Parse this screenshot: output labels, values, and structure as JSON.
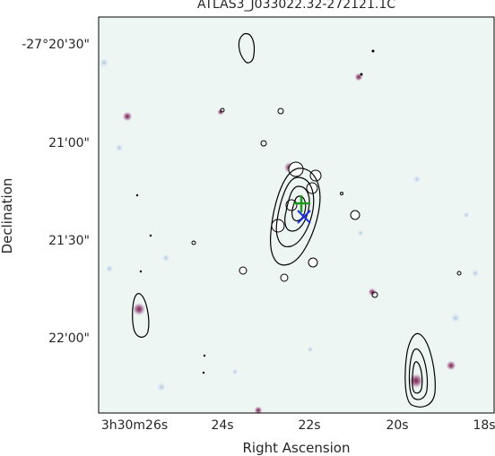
{
  "title": "ATLAS3_J033022.32-272121.1C",
  "axes": {
    "xlabel": "Right Ascension",
    "ylabel": "Declination",
    "xticks": [
      "3h30m26s",
      "24s",
      "22s",
      "20s",
      "18s"
    ],
    "yticks": [
      "-27°20'30\"",
      "21'00\"",
      "21'30\"",
      "22'00\""
    ]
  },
  "colors": {
    "background": "#edf5f2",
    "contour": "#000000",
    "plus_marker": "#1f9a1f",
    "cross_marker": "#1f2fe0"
  }
}
